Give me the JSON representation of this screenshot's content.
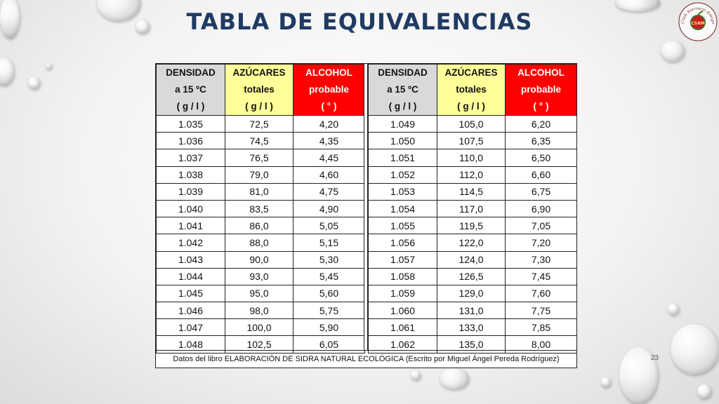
{
  "slide": {
    "title": "TABLA DE EQUIVALENCIAS",
    "page_number": "23",
    "logo_text": "Club Sierrero Amigos de la Manzana",
    "logo_center": "CSAM"
  },
  "table": {
    "headers": {
      "densidad": [
        "DENSIDAD",
        "a 15 ºC",
        "( g / l )"
      ],
      "azucares": [
        "AZÚCARES",
        "totales",
        "( g / l )"
      ],
      "alcohol": [
        "ALCOHOL",
        "probable",
        "( ° )"
      ]
    },
    "left_rows": [
      [
        "1.035",
        "72,5",
        "4,20"
      ],
      [
        "1.036",
        "74,5",
        "4,35"
      ],
      [
        "1.037",
        "76,5",
        "4,45"
      ],
      [
        "1.038",
        "79,0",
        "4,60"
      ],
      [
        "1.039",
        "81,0",
        "4,75"
      ],
      [
        "1.040",
        "83,5",
        "4,90"
      ],
      [
        "1.041",
        "86,0",
        "5,05"
      ],
      [
        "1.042",
        "88,0",
        "5,15"
      ],
      [
        "1.043",
        "90,0",
        "5,30"
      ],
      [
        "1.044",
        "93,0",
        "5,45"
      ],
      [
        "1.045",
        "95,0",
        "5,60"
      ],
      [
        "1.046",
        "98,0",
        "5,75"
      ],
      [
        "1.047",
        "100,0",
        "5,90"
      ],
      [
        "1.048",
        "102,5",
        "6,05"
      ]
    ],
    "right_rows": [
      [
        "1.049",
        "105,0",
        "6,20"
      ],
      [
        "1.050",
        "107,5",
        "6,35"
      ],
      [
        "1.051",
        "110,0",
        "6,50"
      ],
      [
        "1.052",
        "112,0",
        "6,60"
      ],
      [
        "1.053",
        "114,5",
        "6,75"
      ],
      [
        "1.054",
        "117,0",
        "6,90"
      ],
      [
        "1.055",
        "119,5",
        "7,05"
      ],
      [
        "1.056",
        "122,0",
        "7,20"
      ],
      [
        "1.057",
        "124,0",
        "7,30"
      ],
      [
        "1.058",
        "126,5",
        "7,45"
      ],
      [
        "1.059",
        "129,0",
        "7,60"
      ],
      [
        "1.060",
        "131,0",
        "7,75"
      ],
      [
        "1.061",
        "133,0",
        "7,85"
      ],
      [
        "1.062",
        "135,0",
        "8,00"
      ]
    ],
    "footnote": "Datos del libro ELABORACIÓN DE SIDRA NATURAL ECOLÓGICA (Escrito por Miguel Ángel Pereda Rodríguez)"
  },
  "colors": {
    "title": "#1f3b63",
    "densidad_header": "#d9d9d9",
    "azucares_header": "#ffff99",
    "alcohol_header": "#ff0000"
  }
}
